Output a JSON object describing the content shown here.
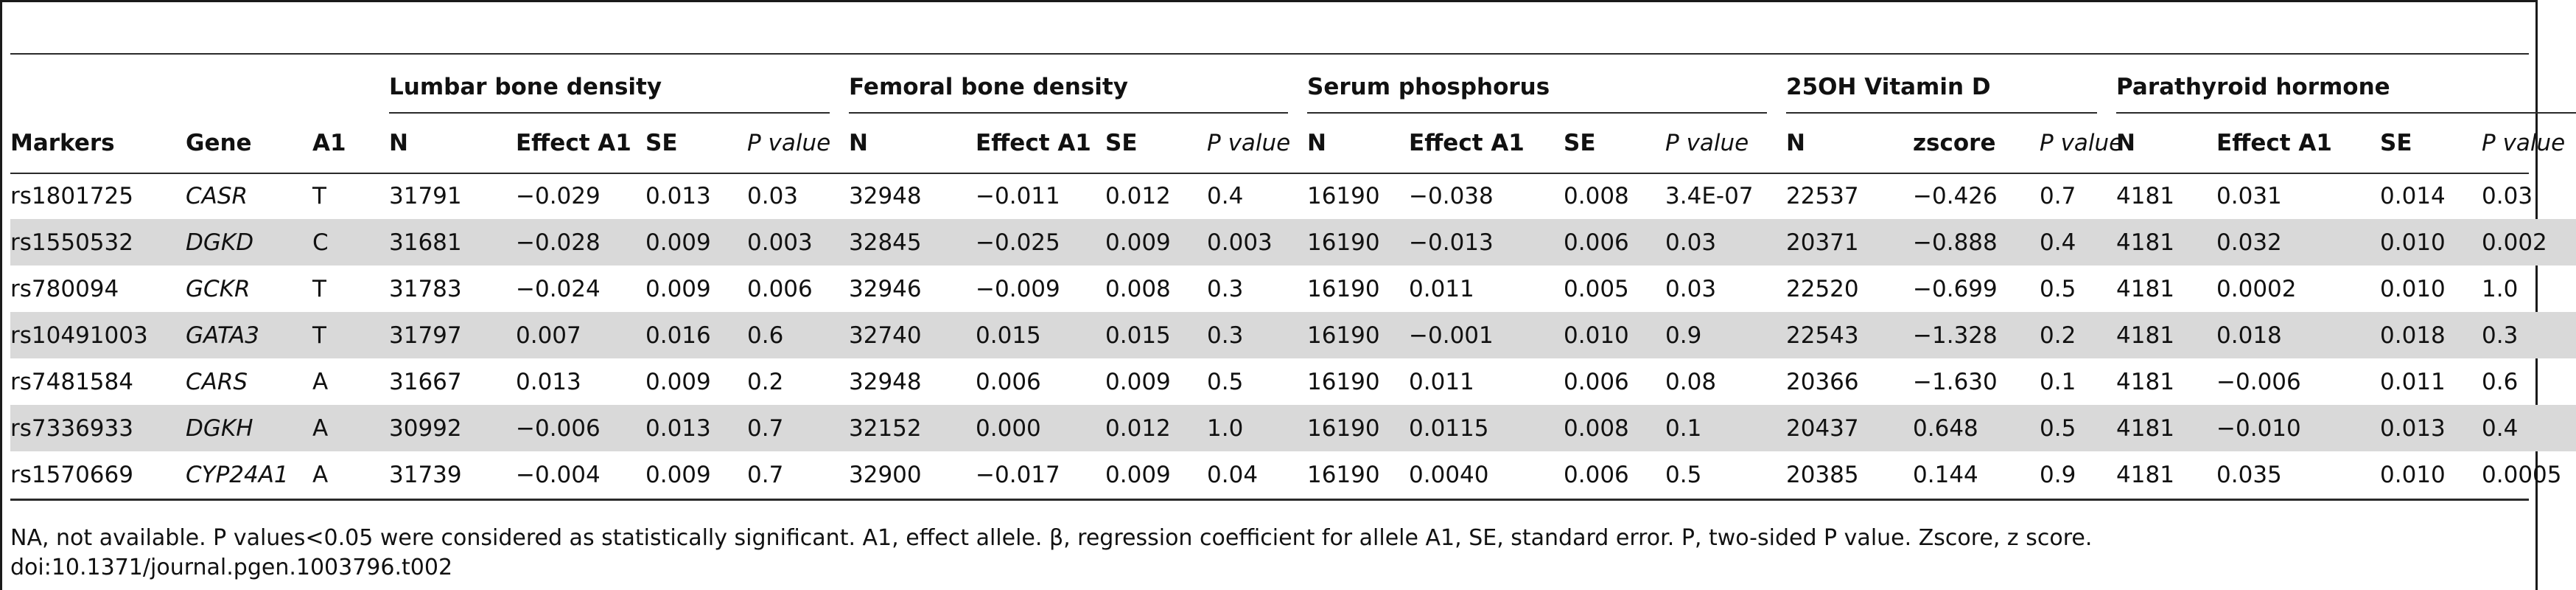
{
  "groups": [
    "Lumbar bone density",
    "Femoral bone density",
    "Serum phosphorus",
    "25OH Vitamin D",
    "Parathyroid hormone"
  ],
  "columns": {
    "markers": "Markers",
    "gene": "Gene",
    "a1": "A1",
    "lumbar": [
      "N",
      "Effect A1",
      "SE",
      "P value"
    ],
    "femoral": [
      "N",
      "Effect A1",
      "SE",
      "P value"
    ],
    "phos": [
      "N",
      "Effect A1",
      "SE",
      "P value"
    ],
    "vitd": [
      "N",
      "zscore",
      "P value"
    ],
    "pth": [
      "N",
      "Effect A1",
      "SE",
      "P value"
    ]
  },
  "rows": [
    {
      "marker": "rs1801725",
      "gene": "CASR",
      "a1": "T",
      "c": [
        "31791",
        "−0.029",
        "0.013",
        "0.03",
        "32948",
        "−0.011",
        "0.012",
        "0.4",
        "16190",
        "−0.038",
        "0.008",
        "3.4E-07",
        "22537",
        "−0.426",
        "0.7",
        "4181",
        "0.031",
        "0.014",
        "0.03"
      ]
    },
    {
      "marker": "rs1550532",
      "gene": "DGKD",
      "a1": "C",
      "c": [
        "31681",
        "−0.028",
        "0.009",
        "0.003",
        "32845",
        "−0.025",
        "0.009",
        "0.003",
        "16190",
        "−0.013",
        "0.006",
        "0.03",
        "20371",
        "−0.888",
        "0.4",
        "4181",
        "0.032",
        "0.010",
        "0.002"
      ]
    },
    {
      "marker": "rs780094",
      "gene": "GCKR",
      "a1": "T",
      "c": [
        "31783",
        "−0.024",
        "0.009",
        "0.006",
        "32946",
        "−0.009",
        "0.008",
        "0.3",
        "16190",
        "0.011",
        "0.005",
        "0.03",
        "22520",
        "−0.699",
        "0.5",
        "4181",
        "0.0002",
        "0.010",
        "1.0"
      ]
    },
    {
      "marker": "rs10491003",
      "gene": "GATA3",
      "a1": "T",
      "c": [
        "31797",
        "0.007",
        "0.016",
        "0.6",
        "32740",
        "0.015",
        "0.015",
        "0.3",
        "16190",
        "−0.001",
        "0.010",
        "0.9",
        "22543",
        "−1.328",
        "0.2",
        "4181",
        "0.018",
        "0.018",
        "0.3"
      ]
    },
    {
      "marker": "rs7481584",
      "gene": "CARS",
      "a1": "A",
      "c": [
        "31667",
        "0.013",
        "0.009",
        "0.2",
        "32948",
        "0.006",
        "0.009",
        "0.5",
        "16190",
        "0.011",
        "0.006",
        "0.08",
        "20366",
        "−1.630",
        "0.1",
        "4181",
        "−0.006",
        "0.011",
        "0.6"
      ]
    },
    {
      "marker": "rs7336933",
      "gene": "DGKH",
      "a1": "A",
      "c": [
        "30992",
        "−0.006",
        "0.013",
        "0.7",
        "32152",
        "0.000",
        "0.012",
        "1.0",
        "16190",
        "0.0115",
        "0.008",
        "0.1",
        "20437",
        "0.648",
        "0.5",
        "4181",
        "−0.010",
        "0.013",
        "0.4"
      ]
    },
    {
      "marker": "rs1570669",
      "gene": "CYP24A1",
      "a1": "A",
      "c": [
        "31739",
        "−0.004",
        "0.009",
        "0.7",
        "32900",
        "−0.017",
        "0.009",
        "0.04",
        "16190",
        "0.0040",
        "0.006",
        "0.5",
        "20385",
        "0.144",
        "0.9",
        "4181",
        "0.035",
        "0.010",
        "0.0005"
      ]
    }
  ],
  "footnote": "NA, not available. P values<0.05 were considered as statistically significant. A1, effect allele. β, regression coefficient for allele A1, SE, standard error. P, two-sided P value. Zscore, z score.",
  "doi": "doi:10.1371/journal.pgen.1003796.t002"
}
